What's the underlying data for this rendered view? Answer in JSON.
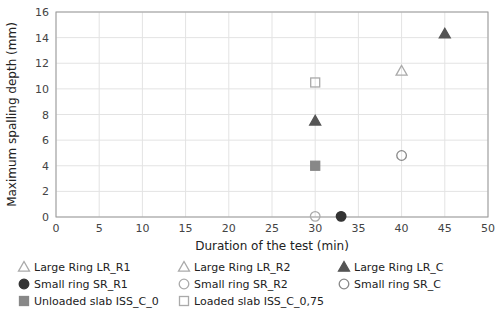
{
  "chart_data": {
    "type": "scatter",
    "xlabel": "Duration of the test (min)",
    "ylabel": "Maximum spalling depth (mm)",
    "xlim": [
      0,
      50
    ],
    "ylim": [
      0,
      16
    ],
    "xticks": [
      0,
      5,
      10,
      15,
      20,
      25,
      30,
      35,
      40,
      45,
      50
    ],
    "yticks": [
      0,
      2,
      4,
      6,
      8,
      10,
      12,
      14,
      16
    ],
    "grid": true,
    "legend": "bottom",
    "series": [
      {
        "name": "Large Ring LR_R1",
        "color": "#aaaaaa",
        "marker": "triangle-open",
        "x": [],
        "values": []
      },
      {
        "name": "Large Ring LR_R2",
        "color": "#aaaaaa",
        "marker": "triangle-open",
        "x": [
          40
        ],
        "values": [
          11.4
        ]
      },
      {
        "name": "Large Ring LR_C",
        "color": "#555555",
        "marker": "triangle",
        "x": [
          30,
          45
        ],
        "values": [
          7.5,
          14.3
        ]
      },
      {
        "name": "Small ring SR_R1",
        "color": "#333333",
        "marker": "circle",
        "x": [
          33
        ],
        "values": [
          0.05
        ]
      },
      {
        "name": "Small ring SR_R2",
        "color": "#aaaaaa",
        "marker": "circle-open",
        "x": [
          30
        ],
        "values": [
          0.05
        ]
      },
      {
        "name": "Small ring SR_C",
        "color": "#888888",
        "marker": "circle-open",
        "x": [
          40
        ],
        "values": [
          4.8
        ]
      },
      {
        "name": "Unloaded slab ISS_C_0",
        "color": "#888888",
        "marker": "square",
        "x": [
          30
        ],
        "values": [
          4.0
        ]
      },
      {
        "name": "Loaded slab ISS_C_0,75",
        "color": "#aaaaaa",
        "marker": "square-open",
        "x": [
          30
        ],
        "values": [
          10.5
        ]
      }
    ]
  }
}
